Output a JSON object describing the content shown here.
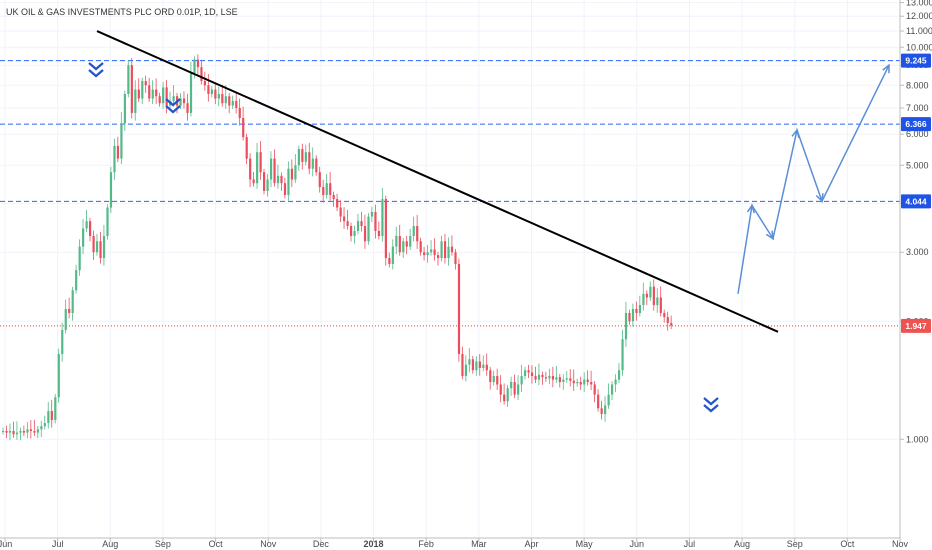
{
  "chart_data": {
    "type": "candlestick",
    "title": "UK OIL & GAS INVESTMENTS PLC ORD 0.01P, 1D, LSE",
    "y_scale": "log",
    "ylim": [
      0.56,
      13.2
    ],
    "y_ticks": [
      "1.000",
      "2.000",
      "3.000",
      "4.000",
      "5.000",
      "6.000",
      "7.000",
      "8.000",
      "9.000",
      "10.000",
      "11.000",
      "12.000",
      "13.000"
    ],
    "x_ticks": [
      "Jun",
      "Jul",
      "Aug",
      "Sep",
      "Oct",
      "Nov",
      "Dec",
      "2018",
      "Feb",
      "Mar",
      "Apr",
      "May",
      "Jun",
      "Jul",
      "Aug",
      "Sep",
      "Oct",
      "Nov"
    ],
    "current_price": "1.947",
    "horizontal_levels": [
      "9.245",
      "6.366",
      "4.044"
    ],
    "colors": {
      "up": "#53b987",
      "down": "#eb4d5c",
      "level_line": "#2962ff",
      "price_line": "#e53935",
      "trendline": "#000000",
      "projection": "#5b8ed6",
      "arrow_marker": "#2255cc",
      "badge_level": "#1e53e5",
      "badge_price": "#ef5350"
    },
    "candles_close": [
      1.05,
      1.04,
      1.05,
      1.03,
      1.04,
      1.05,
      1.04,
      1.06,
      1.05,
      1.04,
      1.06,
      1.08,
      1.1,
      1.18,
      1.12,
      1.28,
      1.65,
      1.9,
      2.15,
      2.1,
      2.4,
      2.7,
      3.1,
      3.45,
      3.6,
      3.3,
      3.0,
      3.2,
      2.9,
      3.3,
      3.9,
      4.8,
      5.6,
      5.2,
      6.4,
      7.6,
      9.0,
      6.8,
      7.8,
      7.4,
      8.2,
      8.0,
      7.4,
      7.8,
      7.5,
      7.2,
      7.9,
      7.1,
      7.3,
      7.5,
      7.1,
      7.4,
      7.2,
      6.8,
      8.6,
      9.3,
      8.9,
      8.2,
      8.0,
      7.6,
      7.8,
      7.4,
      7.6,
      7.2,
      7.5,
      7.1,
      7.3,
      7.0,
      6.6,
      5.9,
      5.2,
      4.6,
      4.5,
      5.4,
      4.8,
      4.3,
      4.6,
      5.2,
      4.5,
      4.7,
      4.5,
      4.2,
      4.9,
      4.6,
      5.0,
      5.5,
      5.1,
      5.4,
      4.9,
      5.2,
      4.8,
      4.4,
      4.2,
      4.5,
      4.2,
      4.1,
      3.9,
      3.7,
      3.6,
      3.5,
      3.3,
      3.4,
      3.6,
      3.5,
      3.2,
      3.7,
      3.8,
      3.4,
      3.3,
      4.1,
      2.9,
      2.8,
      3.1,
      3.3,
      3.0,
      3.2,
      3.1,
      3.3,
      3.5,
      3.2,
      3.0,
      2.95,
      3.0,
      3.05,
      2.95,
      2.9,
      3.2,
      2.9,
      3.1,
      3.0,
      2.8,
      1.65,
      1.45,
      1.55,
      1.6,
      1.5,
      1.58,
      1.52,
      1.55,
      1.5,
      1.4,
      1.45,
      1.38,
      1.3,
      1.25,
      1.35,
      1.4,
      1.3,
      1.38,
      1.45,
      1.5,
      1.48,
      1.45,
      1.42,
      1.46,
      1.44,
      1.43,
      1.45,
      1.42,
      1.44,
      1.4,
      1.42,
      1.43,
      1.41,
      1.39,
      1.4,
      1.38,
      1.42,
      1.4,
      1.38,
      1.3,
      1.2,
      1.16,
      1.22,
      1.3,
      1.38,
      1.42,
      1.5,
      1.8,
      2.1,
      2.0,
      2.15,
      2.1,
      2.2,
      2.35,
      2.3,
      2.45,
      2.2,
      2.3,
      2.1,
      2.05,
      1.98,
      1.95
    ]
  }
}
